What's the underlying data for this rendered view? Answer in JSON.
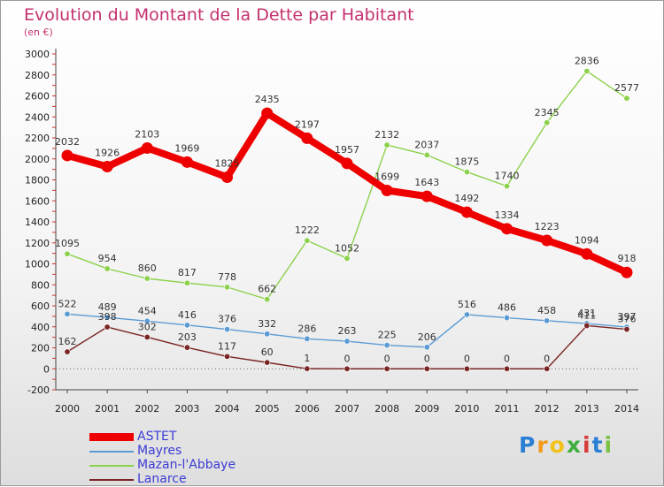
{
  "title": "Evolution du Montant de la Dette par Habitant",
  "subtitle": "(en €)",
  "logo": {
    "text": "Proxiti",
    "letters": [
      "P",
      "r",
      "o",
      "x",
      "i",
      "t",
      "i"
    ],
    "colors": [
      "#2a7fd4",
      "#f29a1a",
      "#f2c218",
      "#3fae3f",
      "#d83a3a",
      "#2a7fd4",
      "#7ac143"
    ]
  },
  "chart_data": {
    "type": "line",
    "x": [
      "2000",
      "2001",
      "2002",
      "2003",
      "2004",
      "2005",
      "2006",
      "2007",
      "2008",
      "2009",
      "2010",
      "2011",
      "2012",
      "2013",
      "2014"
    ],
    "ylim": [
      -200,
      3000
    ],
    "yticks": [
      -200,
      0,
      200,
      400,
      600,
      800,
      1000,
      1200,
      1400,
      1600,
      1800,
      2000,
      2200,
      2400,
      2600,
      2800,
      3000
    ],
    "grid": false,
    "legend": "bottom-left",
    "series": [
      {
        "name": "ASTET",
        "color": "#ee0000",
        "values": [
          2032,
          1926,
          2103,
          1969,
          1825,
          2435,
          2197,
          1957,
          1699,
          1643,
          1492,
          1334,
          1223,
          1094,
          918
        ],
        "labels": [
          "2032",
          "1926",
          "2103",
          "1969",
          "1825",
          "2435",
          "2197",
          "1957",
          "1699",
          "1643",
          "1492",
          "1334",
          "1223",
          "1094",
          "918"
        ]
      },
      {
        "name": "Mayres",
        "color": "#5b9bd5",
        "values": [
          522,
          489,
          454,
          416,
          376,
          332,
          286,
          263,
          225,
          206,
          516,
          486,
          458,
          431,
          397
        ],
        "labels": [
          "522",
          "489",
          "454",
          "416",
          "376",
          "332",
          "286",
          "263",
          "225",
          "206",
          "516",
          "486",
          "458",
          "431",
          "397"
        ]
      },
      {
        "name": "Mazan-l'Abbaye",
        "color": "#8bd14b",
        "values": [
          1095,
          954,
          860,
          817,
          778,
          662,
          1222,
          1052,
          2132,
          2037,
          1875,
          1740,
          2345,
          2836,
          2577
        ],
        "labels": [
          "1095",
          "954",
          "860",
          "817",
          "778",
          "662",
          "1222",
          "1052",
          "2132",
          "2037",
          "1875",
          "1740",
          "2345",
          "2836",
          "2577"
        ]
      },
      {
        "name": "Lanarce",
        "color": "#7a2525",
        "values": [
          162,
          398,
          302,
          203,
          117,
          60,
          1,
          0,
          0,
          0,
          0,
          0,
          0,
          411,
          376
        ],
        "labels": [
          "162",
          "398",
          "302",
          "203",
          "117",
          "60",
          "1",
          "0",
          "0",
          "0",
          "0",
          "0",
          "0",
          "411",
          "376"
        ]
      }
    ]
  }
}
